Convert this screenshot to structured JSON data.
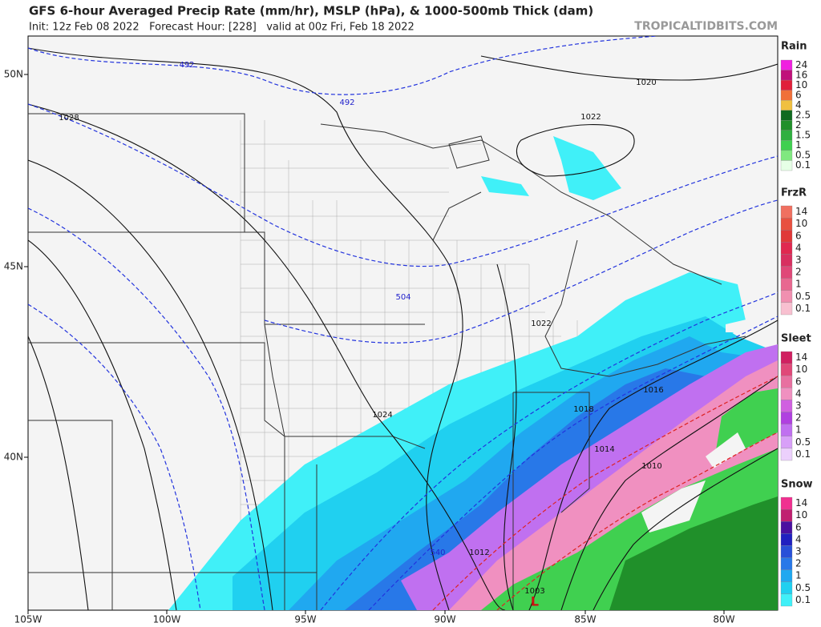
{
  "header": {
    "title": "GFS 6-hour Averaged Precip Rate (mm/hr), MSLP (hPa), & 1000-500mb Thick (dam)",
    "subtitle": "Init: 12z Feb 08 2022   Forecast Hour: [228]   valid at 00z Fri, Feb 18 2022",
    "site": "TROPICALTIDBITS.COM"
  },
  "lat_labels": [
    "50N",
    "45N",
    "40N"
  ],
  "lon_labels": [
    "105W",
    "100W",
    "95W",
    "90W",
    "85W",
    "80W"
  ],
  "thickness_labels": [
    "492",
    "492",
    "504",
    "540"
  ],
  "pressure_labels": [
    "1020",
    "1022",
    "1028",
    "1022",
    "1016",
    "1018",
    "1024",
    "1014",
    "1010",
    "1012",
    "1003"
  ],
  "low_marker": "L",
  "legend": [
    {
      "title": "Rain",
      "labels": [
        "24",
        "16",
        "10",
        "6",
        "4",
        "2.5",
        "2",
        "1.5",
        "1",
        "0.5",
        "0.1"
      ],
      "colors": [
        "#f020e0",
        "#c0107a",
        "#e0203a",
        "#f0703a",
        "#f0c040",
        "#106a20",
        "#20902a",
        "#30b040",
        "#40d050",
        "#80e880",
        "#e6ffe6"
      ]
    },
    {
      "title": "FrzR",
      "labels": [
        "14",
        "10",
        "6",
        "4",
        "3",
        "2",
        "1",
        "0.5",
        "0.1"
      ],
      "colors": [
        "#f07060",
        "#e85040",
        "#e03838",
        "#e02850",
        "#d83060",
        "#e04878",
        "#e86890",
        "#f090b0",
        "#f8c0d0"
      ]
    },
    {
      "title": "Sleet",
      "labels": [
        "14",
        "10",
        "6",
        "4",
        "3",
        "2",
        "1",
        "0.5",
        "0.1"
      ],
      "colors": [
        "#d02060",
        "#e04878",
        "#e870a0",
        "#f090c0",
        "#d060e0",
        "#b040e0",
        "#c070f0",
        "#d8a0f8",
        "#ecd0fc"
      ]
    },
    {
      "title": "Snow",
      "labels": [
        "14",
        "10",
        "6",
        "4",
        "3",
        "2",
        "1",
        "0.5",
        "0.1"
      ],
      "colors": [
        "#f03090",
        "#c02070",
        "#4a10a0",
        "#2020c0",
        "#2850d8",
        "#2878e8",
        "#20a8f0",
        "#20d0f0",
        "#40f0f8"
      ]
    }
  ]
}
